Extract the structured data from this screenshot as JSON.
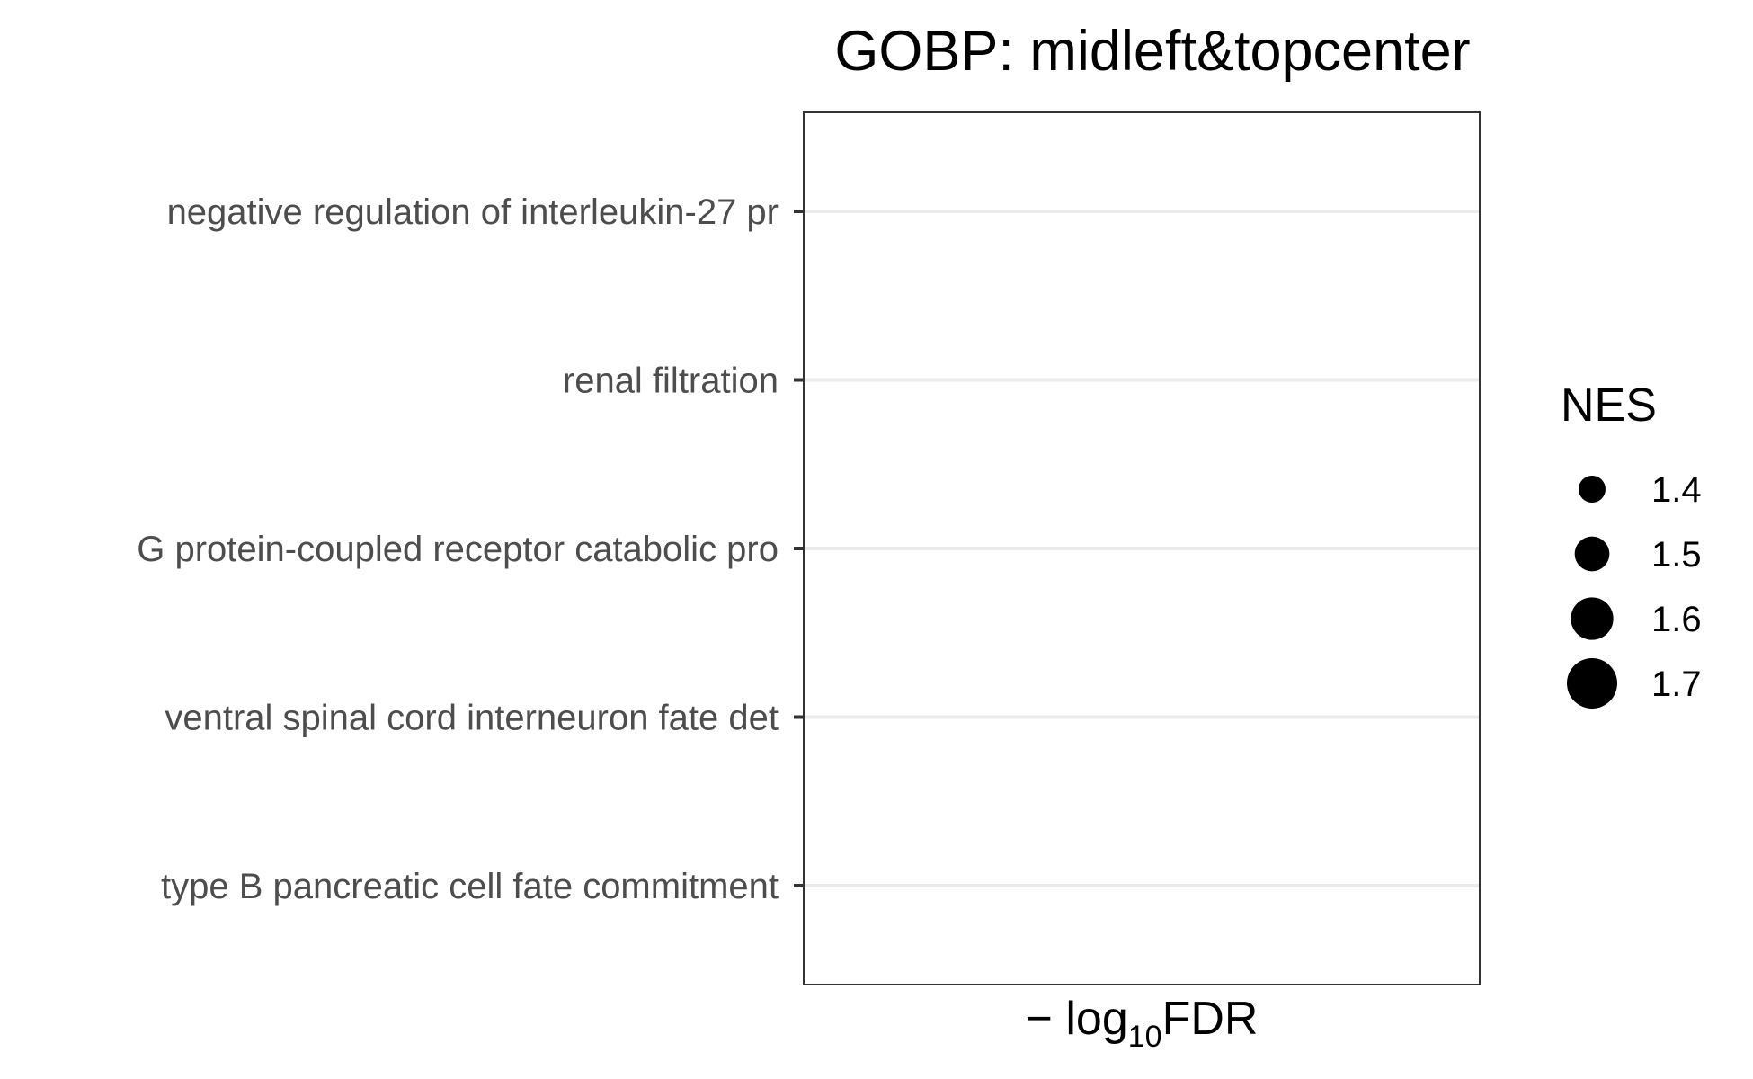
{
  "chart_data": {
    "type": "scatter",
    "title": "GOBP: midleft&topcenter",
    "xlabel": {
      "prefix": "− log",
      "subscript": "10",
      "suffix": "FDR"
    },
    "ylabel": "",
    "categories": [
      "negative regulation of interleukin-27 pr",
      "renal filtration",
      "G protein-coupled receptor catabolic pro",
      "ventral spinal cord interneuron fate det",
      "type B pancreatic cell fate commitment"
    ],
    "points": [],
    "x_ticks": [],
    "grid": "horizontal major lines only",
    "legend": {
      "title": "NES",
      "position": "right",
      "entries": [
        {
          "label": "1.4",
          "value": 1.4
        },
        {
          "label": "1.5",
          "value": 1.5
        },
        {
          "label": "1.6",
          "value": 1.6
        },
        {
          "label": "1.7",
          "value": 1.7
        }
      ]
    },
    "colors": {
      "background": "#ffffff",
      "panel_border": "#333333",
      "grid": "#ebebeb",
      "point": "#000000",
      "axis_text": "#4d4d4d"
    }
  }
}
